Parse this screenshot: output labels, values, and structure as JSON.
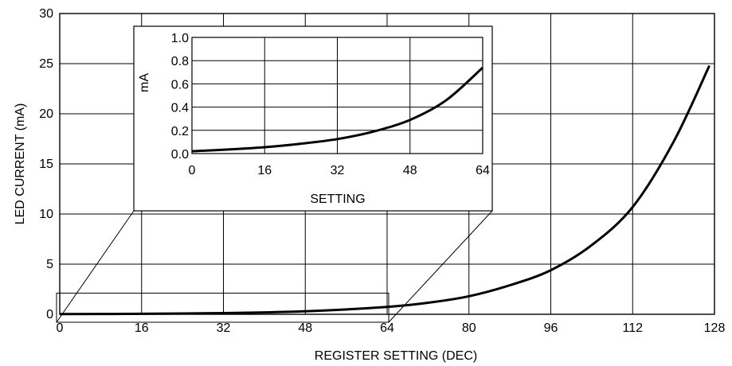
{
  "chart_data": [
    {
      "type": "line",
      "title": "",
      "xlabel": "REGISTER SETTING (DEC)",
      "ylabel": "LED CURRENT (mA)",
      "xlim": [
        0,
        128
      ],
      "ylim": [
        0,
        30
      ],
      "xticks": [
        "0",
        "16",
        "32",
        "48",
        "64",
        "80",
        "96",
        "112",
        "128"
      ],
      "yticks": [
        "0",
        "5",
        "10",
        "15",
        "20",
        "25",
        "30"
      ],
      "grid": true,
      "series": [
        {
          "x": [
            0,
            16,
            32,
            48,
            64,
            72,
            80,
            88,
            96,
            104,
            112,
            120,
            127
          ],
          "y": [
            0.02,
            0.05,
            0.12,
            0.3,
            0.74,
            1.15,
            1.8,
            2.9,
            4.4,
            6.9,
            10.7,
            17.2,
            24.8
          ]
        }
      ]
    },
    {
      "type": "line",
      "title": "",
      "xlabel": "SETTING",
      "ylabel": "mA",
      "xlim": [
        0,
        64
      ],
      "ylim": [
        0,
        1.0
      ],
      "xticks": [
        "0",
        "16",
        "32",
        "48",
        "64"
      ],
      "yticks": [
        "0.0",
        "0.2",
        "0.4",
        "0.6",
        "0.8",
        "1.0"
      ],
      "grid": true,
      "series": [
        {
          "x": [
            0,
            8,
            16,
            24,
            32,
            40,
            48,
            56,
            64
          ],
          "y": [
            0.02,
            0.035,
            0.055,
            0.085,
            0.125,
            0.19,
            0.29,
            0.46,
            0.74
          ]
        }
      ]
    }
  ]
}
